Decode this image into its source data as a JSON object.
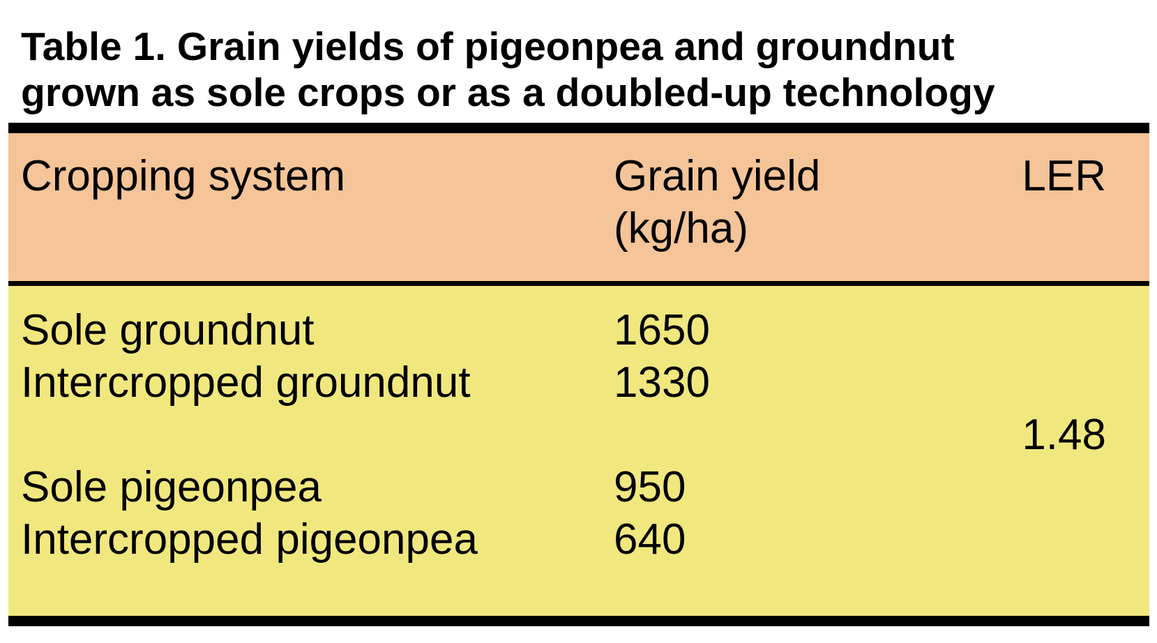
{
  "title": {
    "line1": "Table 1. Grain yields of pigeonpea and groundnut",
    "line2": "grown as sole crops or as a doubled-up technology"
  },
  "table": {
    "header": {
      "cropping_system": "Cropping system",
      "grain_yield_line1": "Grain yield",
      "grain_yield_line2": "(kg/ha)",
      "ler": "LER"
    },
    "rows": [
      {
        "system": "Sole groundnut",
        "yield": "1650",
        "ler": ""
      },
      {
        "system": "Intercropped groundnut",
        "yield": "1330",
        "ler": ""
      },
      {
        "system": "",
        "yield": "",
        "ler": "1.48"
      },
      {
        "system": "Sole pigeonpea",
        "yield": "950",
        "ler": ""
      },
      {
        "system": "Intercropped pigeonpea",
        "yield": "640",
        "ler": ""
      }
    ]
  },
  "colors": {
    "header_background": "#f5c498",
    "body_background": "#f0e87e",
    "rule": "#000000",
    "text": "#000000",
    "page_background": "#ffffff"
  },
  "chart_data": {
    "type": "table",
    "title": "Table 1. Grain yields of pigeonpea and groundnut grown as sole crops or as a doubled-up technology",
    "columns": [
      "Cropping system",
      "Grain yield (kg/ha)",
      "LER"
    ],
    "rows": [
      [
        "Sole groundnut",
        1650,
        null
      ],
      [
        "Intercropped groundnut",
        1330,
        null
      ],
      [
        null,
        null,
        1.48
      ],
      [
        "Sole pigeonpea",
        950,
        null
      ],
      [
        "Intercropped pigeonpea",
        640,
        null
      ]
    ]
  }
}
